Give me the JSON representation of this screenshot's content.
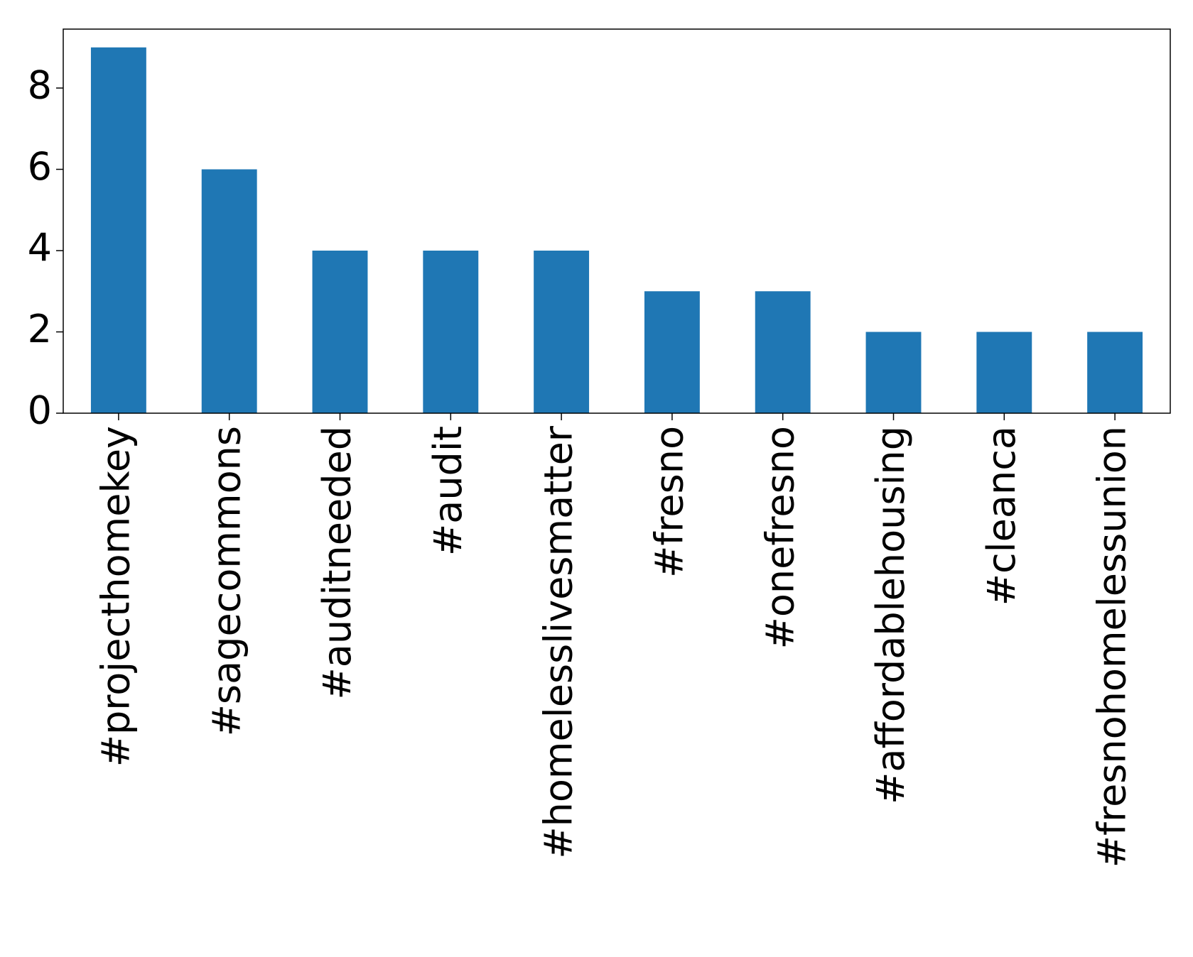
{
  "chart_data": {
    "type": "bar",
    "categories": [
      "#projecthomekey",
      "#sagecommons",
      "#auditneeded",
      "#audit",
      "#homelesslivesmatter",
      "#fresno",
      "#onefresno",
      "#affordablehousing",
      "#cleanca",
      "#fresnohomelessunion"
    ],
    "values": [
      9,
      6,
      4,
      4,
      4,
      3,
      3,
      2,
      2,
      2
    ],
    "color": "#1f77b4",
    "ylim": [
      0,
      9.45
    ],
    "yticks": [
      0,
      2,
      4,
      6,
      8
    ],
    "grid": false
  }
}
